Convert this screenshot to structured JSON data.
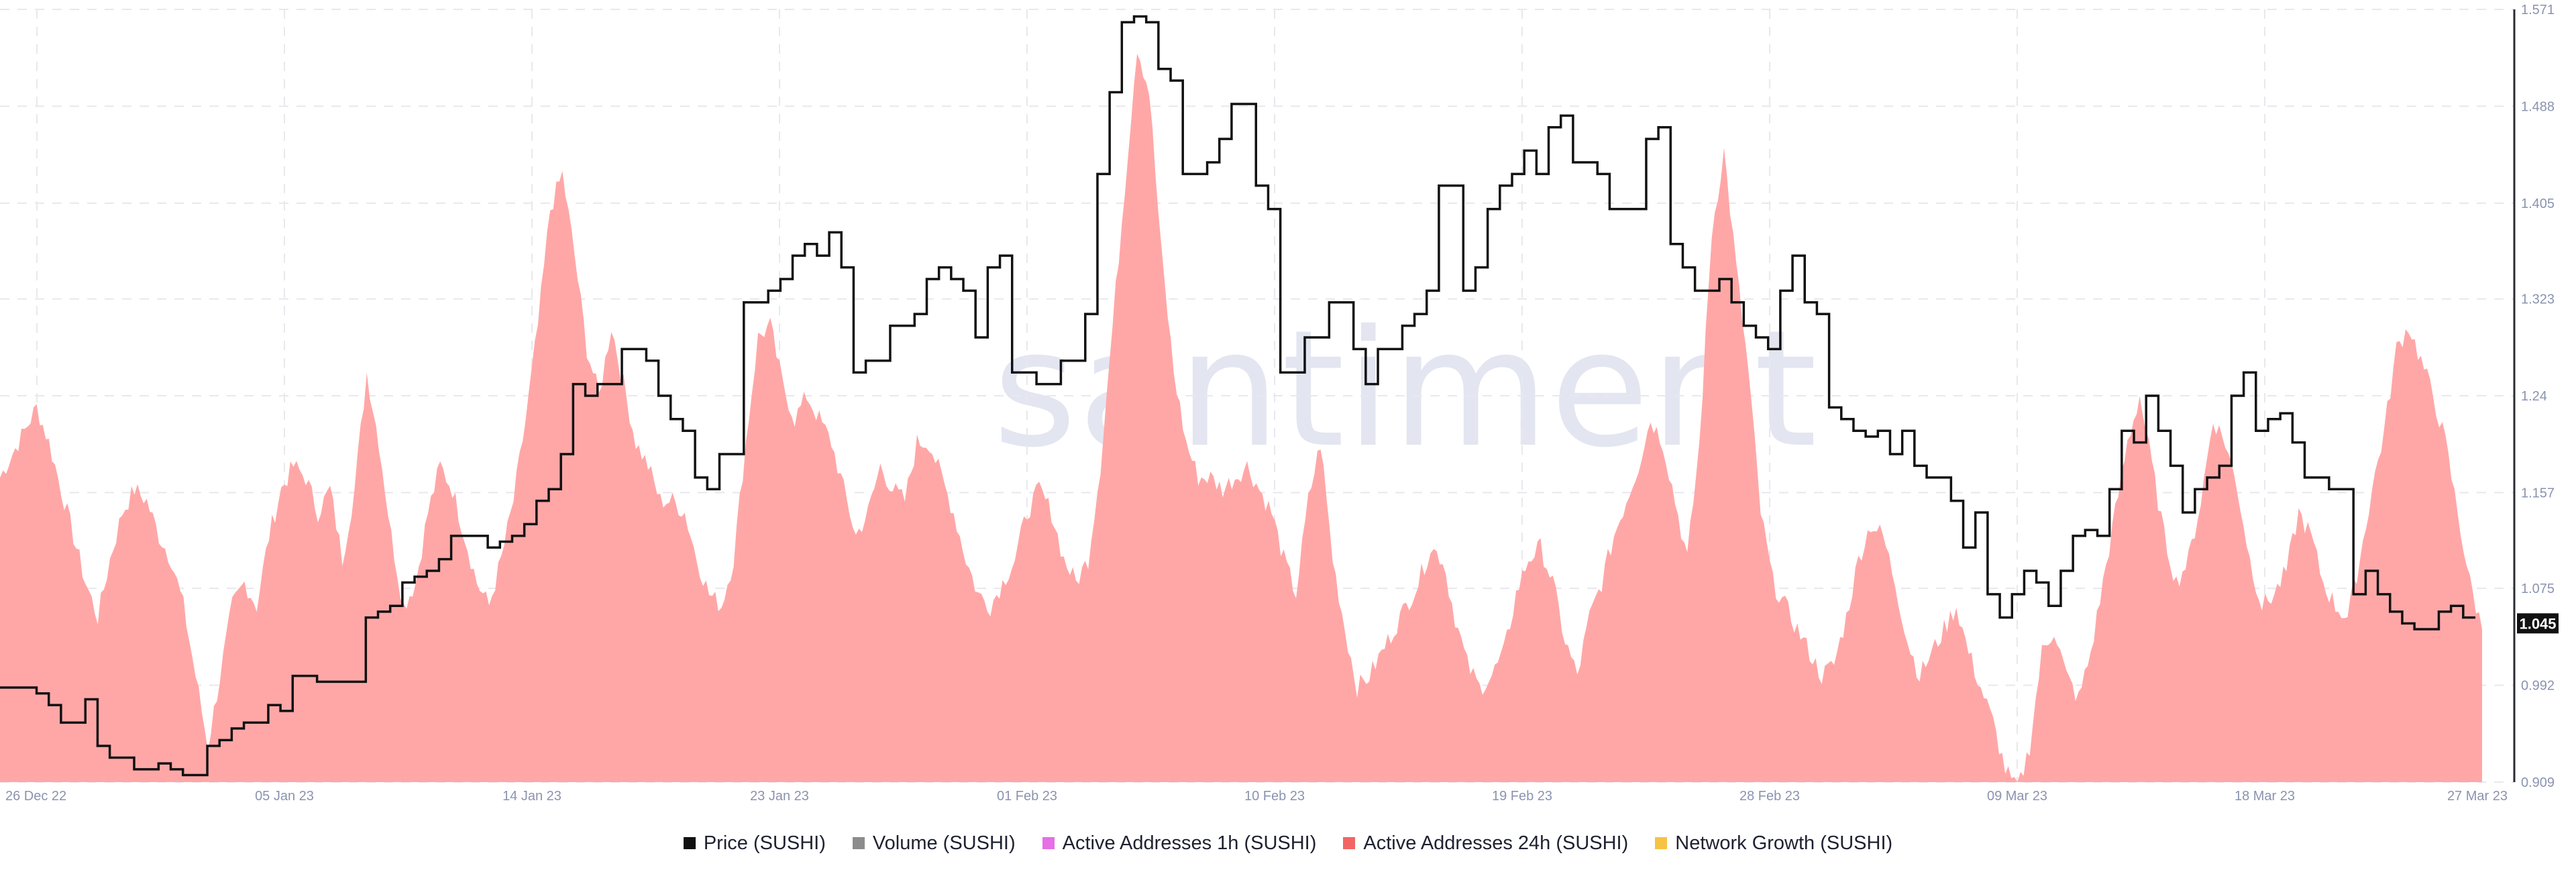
{
  "watermark": "santiment",
  "colors": {
    "price": "#111111",
    "volume": "#8c8c8c",
    "aa1h": "#e66ee6",
    "aa24h_fill": "#ffa7a7",
    "aa24h_swatch": "#f26565",
    "network_growth": "#f6c343",
    "grid": "#e8e8ee",
    "axis": "#8a93b0"
  },
  "legend": [
    {
      "label": "Price (SUSHI)",
      "color": "#111111"
    },
    {
      "label": "Volume (SUSHI)",
      "color": "#8c8c8c"
    },
    {
      "label": "Active Addresses 1h (SUSHI)",
      "color": "#e66ee6"
    },
    {
      "label": "Active Addresses 24h (SUSHI)",
      "color": "#f26565"
    },
    {
      "label": "Network Growth (SUSHI)",
      "color": "#f6c343"
    }
  ],
  "chart_data": {
    "type": "line",
    "x_ticks": [
      "26 Dec 22",
      "05 Jan 23",
      "14 Jan 23",
      "23 Jan 23",
      "01 Feb 23",
      "10 Feb 23",
      "19 Feb 23",
      "28 Feb 23",
      "09 Mar 23",
      "18 Mar 23",
      "27 Mar 23"
    ],
    "x_start_label": "26 Dec 22",
    "x_end_label": "27 Mar 23",
    "y_ticks": [
      "1.571",
      "1.488",
      "1.405",
      "1.323",
      "1.24",
      "1.157",
      "1.075",
      "0.992",
      "0.909"
    ],
    "ylim": [
      0.909,
      1.571
    ],
    "current_price": "1.045",
    "grid": true,
    "legend_position": "bottom",
    "series": [
      {
        "name": "Price (SUSHI)",
        "style": "step",
        "values": [
          0.99,
          0.99,
          0.99,
          0.985,
          0.975,
          0.96,
          0.96,
          0.98,
          0.94,
          0.93,
          0.93,
          0.92,
          0.92,
          0.925,
          0.92,
          0.915,
          0.915,
          0.94,
          0.945,
          0.955,
          0.96,
          0.96,
          0.975,
          0.97,
          1.0,
          1.0,
          0.995,
          0.995,
          0.995,
          0.995,
          1.05,
          1.055,
          1.06,
          1.08,
          1.085,
          1.09,
          1.1,
          1.12,
          1.12,
          1.12,
          1.11,
          1.115,
          1.12,
          1.13,
          1.15,
          1.16,
          1.19,
          1.25,
          1.24,
          1.25,
          1.25,
          1.28,
          1.28,
          1.27,
          1.24,
          1.22,
          1.21,
          1.17,
          1.16,
          1.19,
          1.19,
          1.32,
          1.32,
          1.33,
          1.34,
          1.36,
          1.37,
          1.36,
          1.38,
          1.35,
          1.26,
          1.27,
          1.27,
          1.3,
          1.3,
          1.31,
          1.34,
          1.35,
          1.34,
          1.33,
          1.29,
          1.35,
          1.36,
          1.26,
          1.26,
          1.25,
          1.25,
          1.27,
          1.27,
          1.31,
          1.43,
          1.5,
          1.56,
          1.565,
          1.56,
          1.52,
          1.51,
          1.43,
          1.43,
          1.44,
          1.46,
          1.49,
          1.49,
          1.42,
          1.4,
          1.26,
          1.26,
          1.29,
          1.29,
          1.32,
          1.32,
          1.28,
          1.25,
          1.28,
          1.28,
          1.3,
          1.31,
          1.33,
          1.42,
          1.42,
          1.33,
          1.35,
          1.4,
          1.42,
          1.43,
          1.45,
          1.43,
          1.47,
          1.48,
          1.44,
          1.44,
          1.43,
          1.4,
          1.4,
          1.4,
          1.46,
          1.47,
          1.37,
          1.35,
          1.33,
          1.33,
          1.34,
          1.32,
          1.3,
          1.29,
          1.28,
          1.33,
          1.36,
          1.32,
          1.31,
          1.23,
          1.22,
          1.21,
          1.205,
          1.21,
          1.19,
          1.21,
          1.18,
          1.17,
          1.17,
          1.15,
          1.11,
          1.14,
          1.07,
          1.05,
          1.07,
          1.09,
          1.08,
          1.06,
          1.09,
          1.12,
          1.125,
          1.12,
          1.16,
          1.21,
          1.2,
          1.24,
          1.21,
          1.18,
          1.14,
          1.16,
          1.17,
          1.18,
          1.24,
          1.26,
          1.21,
          1.22,
          1.225,
          1.2,
          1.17,
          1.17,
          1.16,
          1.16,
          1.07,
          1.09,
          1.07,
          1.055,
          1.045,
          1.04,
          1.04,
          1.055,
          1.06,
          1.05
        ]
      },
      {
        "name": "Active Addresses 24h (SUSHI)",
        "style": "area",
        "values": [
          1.17,
          1.19,
          1.21,
          1.23,
          1.2,
          1.16,
          1.12,
          1.08,
          1.05,
          1.1,
          1.14,
          1.16,
          1.15,
          1.12,
          1.1,
          1.06,
          1.0,
          0.94,
          1.0,
          1.06,
          1.08,
          1.06,
          1.12,
          1.16,
          1.18,
          1.17,
          1.14,
          1.16,
          1.1,
          1.16,
          1.26,
          1.2,
          1.12,
          1.06,
          1.08,
          1.14,
          1.18,
          1.16,
          1.12,
          1.08,
          1.06,
          1.1,
          1.15,
          1.22,
          1.3,
          1.4,
          1.43,
          1.36,
          1.28,
          1.24,
          1.3,
          1.25,
          1.2,
          1.18,
          1.15,
          1.15,
          1.14,
          1.1,
          1.07,
          1.06,
          1.1,
          1.2,
          1.29,
          1.3,
          1.25,
          1.22,
          1.24,
          1.22,
          1.2,
          1.16,
          1.12,
          1.14,
          1.18,
          1.16,
          1.15,
          1.2,
          1.2,
          1.17,
          1.14,
          1.1,
          1.07,
          1.06,
          1.08,
          1.1,
          1.14,
          1.16,
          1.14,
          1.1,
          1.08,
          1.1,
          1.18,
          1.3,
          1.42,
          1.54,
          1.5,
          1.36,
          1.26,
          1.2,
          1.17,
          1.17,
          1.16,
          1.17,
          1.18,
          1.16,
          1.14,
          1.1,
          1.07,
          1.15,
          1.2,
          1.1,
          1.04,
          0.99,
          1.0,
          1.02,
          1.04,
          1.06,
          1.08,
          1.11,
          1.1,
          1.05,
          1.01,
          0.99,
          1.0,
          1.02,
          1.07,
          1.1,
          1.11,
          1.08,
          1.03,
          1.0,
          1.05,
          1.08,
          1.12,
          1.15,
          1.18,
          1.22,
          1.2,
          1.15,
          1.1,
          1.2,
          1.38,
          1.45,
          1.35,
          1.26,
          1.14,
          1.08,
          1.06,
          1.04,
          1.02,
          1.0,
          1.01,
          1.05,
          1.1,
          1.13,
          1.12,
          1.08,
          1.03,
          1.0,
          1.02,
          1.04,
          1.06,
          1.02,
          0.99,
          0.96,
          0.92,
          0.9,
          0.94,
          1.02,
          1.04,
          1.0,
          0.98,
          1.02,
          1.08,
          1.14,
          1.2,
          1.24,
          1.18,
          1.12,
          1.08,
          1.1,
          1.15,
          1.22,
          1.2,
          1.16,
          1.1,
          1.06,
          1.07,
          1.09,
          1.14,
          1.12,
          1.08,
          1.06,
          1.05,
          1.1,
          1.16,
          1.21,
          1.28,
          1.3,
          1.27,
          1.24,
          1.2,
          1.14,
          1.08,
          1.04
        ]
      }
    ]
  }
}
